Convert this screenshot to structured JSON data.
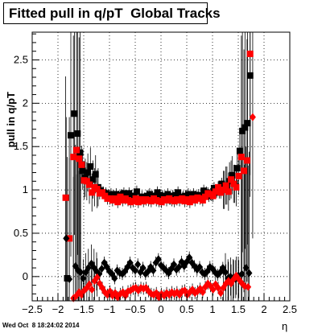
{
  "chart_data": {
    "type": "scatter",
    "title": "Fitted pull in q/pT  Global Tracks",
    "xlabel": "η",
    "ylabel": "pull in q/pT",
    "xlim": [
      -2.5,
      2.5
    ],
    "ylim": [
      -0.28,
      2.82
    ],
    "xticks": [
      "−2.5",
      "−2",
      "−1.5",
      "−1",
      "−0.5",
      "0",
      "0.5",
      "1",
      "1.5",
      "2",
      "2.5"
    ],
    "yticks": [
      "0",
      "0.5",
      "1",
      "1.5",
      "2",
      "2.5"
    ],
    "grid": true,
    "series": [
      {
        "marker": "square",
        "color": "#000000",
        "points": [
          [
            -1.82,
            -0.02
          ],
          [
            -1.75,
            1.63
          ],
          [
            -1.68,
            1.88
          ],
          [
            -1.62,
            1.65
          ],
          [
            -1.57,
            1.43
          ],
          [
            -1.52,
            1.22
          ],
          [
            -1.47,
            1.14
          ],
          [
            -1.42,
            1.2
          ],
          [
            -1.37,
            1.27
          ],
          [
            -1.32,
            1.12
          ],
          [
            -1.27,
            1.18
          ],
          [
            -1.22,
            1.03
          ],
          [
            -1.17,
            0.99
          ],
          [
            -1.12,
            0.97
          ],
          [
            -1.07,
            0.96
          ],
          [
            -1.02,
            0.94
          ],
          [
            -0.97,
            0.95
          ],
          [
            -0.92,
            0.93
          ],
          [
            -0.87,
            0.95
          ],
          [
            -0.82,
            0.92
          ],
          [
            -0.77,
            0.94
          ],
          [
            -0.72,
            0.96
          ],
          [
            -0.67,
            0.92
          ],
          [
            -0.62,
            0.96
          ],
          [
            -0.57,
            0.93
          ],
          [
            -0.52,
            0.93
          ],
          [
            -0.47,
            0.98
          ],
          [
            -0.42,
            0.9
          ],
          [
            -0.37,
            0.92
          ],
          [
            -0.32,
            0.9
          ],
          [
            -0.27,
            0.93
          ],
          [
            -0.22,
            0.95
          ],
          [
            -0.17,
            0.92
          ],
          [
            -0.12,
            0.93
          ],
          [
            -0.07,
            0.97
          ],
          [
            -0.02,
            0.94
          ],
          [
            0.03,
            0.93
          ],
          [
            0.08,
            0.92
          ],
          [
            0.13,
            0.95
          ],
          [
            0.18,
            0.9
          ],
          [
            0.23,
            0.93
          ],
          [
            0.28,
            0.94
          ],
          [
            0.33,
            0.97
          ],
          [
            0.38,
            0.91
          ],
          [
            0.43,
            0.92
          ],
          [
            0.48,
            0.93
          ],
          [
            0.53,
            0.95
          ],
          [
            0.58,
            0.91
          ],
          [
            0.63,
            0.95
          ],
          [
            0.68,
            0.92
          ],
          [
            0.73,
            0.94
          ],
          [
            0.78,
            0.93
          ],
          [
            0.83,
            0.99
          ],
          [
            0.88,
            0.97
          ],
          [
            0.93,
            0.93
          ],
          [
            0.98,
            0.94
          ],
          [
            1.03,
            1.02
          ],
          [
            1.08,
            0.98
          ],
          [
            1.13,
            0.97
          ],
          [
            1.18,
            1.07
          ],
          [
            1.23,
            1.0
          ],
          [
            1.28,
            1.05
          ],
          [
            1.33,
            1.1
          ],
          [
            1.38,
            1.17
          ],
          [
            1.43,
            1.07
          ],
          [
            1.48,
            1.25
          ],
          [
            1.53,
            1.45
          ],
          [
            1.58,
            1.68
          ],
          [
            1.63,
            1.72
          ],
          [
            1.68,
            1.77
          ],
          [
            1.73,
            2.32
          ]
        ]
      },
      {
        "marker": "square",
        "color": "#ff0000",
        "points": [
          [
            -1.85,
            0.91
          ],
          [
            -1.78,
            0.44
          ],
          [
            -1.7,
            1.38
          ],
          [
            -1.64,
            1.46
          ],
          [
            -1.59,
            1.36
          ],
          [
            -1.54,
            1.29
          ],
          [
            -1.49,
            1.11
          ],
          [
            -1.44,
            1.1
          ],
          [
            -1.39,
            1.06
          ],
          [
            -1.34,
            0.97
          ],
          [
            -1.29,
            1.03
          ],
          [
            -1.24,
            1.01
          ],
          [
            -1.19,
            0.96
          ],
          [
            -1.14,
            0.97
          ],
          [
            -1.09,
            0.93
          ],
          [
            -1.04,
            0.9
          ],
          [
            -0.99,
            0.9
          ],
          [
            -0.94,
            0.88
          ],
          [
            -0.89,
            0.9
          ],
          [
            -0.84,
            0.86
          ],
          [
            -0.79,
            0.92
          ],
          [
            -0.74,
            0.88
          ],
          [
            -0.69,
            0.9
          ],
          [
            -0.64,
            0.88
          ],
          [
            -0.59,
            0.86
          ],
          [
            -0.54,
            0.87
          ],
          [
            -0.49,
            0.9
          ],
          [
            -0.44,
            0.86
          ],
          [
            -0.39,
            0.89
          ],
          [
            -0.34,
            0.87
          ],
          [
            -0.29,
            0.89
          ],
          [
            -0.24,
            0.88
          ],
          [
            -0.19,
            0.87
          ],
          [
            -0.14,
            0.9
          ],
          [
            -0.09,
            0.88
          ],
          [
            -0.04,
            0.87
          ],
          [
            0.01,
            0.86
          ],
          [
            0.06,
            0.89
          ],
          [
            0.11,
            0.88
          ],
          [
            0.16,
            0.9
          ],
          [
            0.21,
            0.88
          ],
          [
            0.26,
            0.87
          ],
          [
            0.31,
            0.89
          ],
          [
            0.36,
            0.88
          ],
          [
            0.41,
            0.9
          ],
          [
            0.46,
            0.87
          ],
          [
            0.51,
            0.89
          ],
          [
            0.56,
            0.86
          ],
          [
            0.61,
            0.9
          ],
          [
            0.66,
            0.88
          ],
          [
            0.71,
            0.91
          ],
          [
            0.76,
            0.9
          ],
          [
            0.81,
            0.88
          ],
          [
            0.86,
            0.92
          ],
          [
            0.91,
            0.96
          ],
          [
            0.96,
            0.95
          ],
          [
            1.01,
            0.93
          ],
          [
            1.06,
            0.98
          ],
          [
            1.11,
            1.03
          ],
          [
            1.16,
            0.97
          ],
          [
            1.21,
            1.0
          ],
          [
            1.26,
            1.05
          ],
          [
            1.31,
            0.98
          ],
          [
            1.36,
            1.12
          ],
          [
            1.41,
            1.07
          ],
          [
            1.46,
            1.03
          ],
          [
            1.51,
            1.16
          ],
          [
            1.56,
            1.38
          ],
          [
            1.61,
            1.22
          ],
          [
            1.67,
            1.34
          ],
          [
            1.73,
            2.57
          ]
        ]
      },
      {
        "marker": "diamond",
        "color": "#000000",
        "points": [
          [
            -1.84,
            0.44
          ],
          [
            -1.78,
            -0.03
          ],
          [
            -1.66,
            0.12
          ],
          [
            -1.61,
            0.07
          ],
          [
            -1.56,
            0.05
          ],
          [
            -1.51,
            -0.02
          ],
          [
            -1.46,
            0.05
          ],
          [
            -1.41,
            0.1
          ],
          [
            -1.35,
            0.15
          ],
          [
            -1.3,
            0.1
          ],
          [
            -1.25,
            0.06
          ],
          [
            -1.2,
            0.03
          ],
          [
            -1.15,
            0.09
          ],
          [
            -1.1,
            0.16
          ],
          [
            -1.05,
            0.11
          ],
          [
            -1.0,
            0.06
          ],
          [
            -0.95,
            0.03
          ],
          [
            -0.9,
            -0.02
          ],
          [
            -0.85,
            0.07
          ],
          [
            -0.8,
            0.04
          ],
          [
            -0.75,
            0.03
          ],
          [
            -0.7,
            0.06
          ],
          [
            -0.65,
            0.11
          ],
          [
            -0.6,
            0.16
          ],
          [
            -0.55,
            0.1
          ],
          [
            -0.5,
            0.07
          ],
          [
            -0.45,
            0.14
          ],
          [
            -0.4,
            0.05
          ],
          [
            -0.35,
            0.1
          ],
          [
            -0.3,
            0.03
          ],
          [
            -0.25,
            0.06
          ],
          [
            -0.2,
            0.11
          ],
          [
            -0.15,
            0.07
          ],
          [
            -0.1,
            0.16
          ],
          [
            -0.05,
            0.2
          ],
          [
            0.0,
            0.13
          ],
          [
            0.05,
            0.1
          ],
          [
            0.1,
            0.07
          ],
          [
            0.15,
            0.04
          ],
          [
            0.2,
            0.09
          ],
          [
            0.25,
            0.14
          ],
          [
            0.3,
            0.08
          ],
          [
            0.35,
            0.11
          ],
          [
            0.4,
            0.17
          ],
          [
            0.45,
            0.12
          ],
          [
            0.5,
            0.17
          ],
          [
            0.55,
            0.22
          ],
          [
            0.6,
            0.16
          ],
          [
            0.65,
            0.12
          ],
          [
            0.7,
            0.08
          ],
          [
            0.75,
            0.11
          ],
          [
            0.8,
            0.05
          ],
          [
            0.85,
            0.03
          ],
          [
            0.9,
            0.06
          ],
          [
            0.95,
            0.11
          ],
          [
            1.0,
            0.09
          ],
          [
            1.05,
            0.05
          ],
          [
            1.1,
            0.02
          ],
          [
            1.15,
            0.05
          ],
          [
            1.2,
            0.1
          ],
          [
            1.25,
            0.05
          ],
          [
            1.3,
            -0.02
          ],
          [
            1.35,
            0.0
          ],
          [
            1.4,
            -0.02
          ],
          [
            1.45,
            -0.03
          ],
          [
            1.5,
            0.01
          ],
          [
            1.57,
            0.03
          ],
          [
            1.65,
            0.1
          ],
          [
            1.71,
            0.04
          ]
        ]
      },
      {
        "marker": "diamond",
        "color": "#ff0000",
        "points": [
          [
            -1.7,
            -0.25
          ],
          [
            -1.64,
            -0.22
          ],
          [
            -1.59,
            -0.18
          ],
          [
            -1.54,
            -0.21
          ],
          [
            -1.49,
            -0.16
          ],
          [
            -1.44,
            -0.13
          ],
          [
            -1.39,
            -0.09
          ],
          [
            -1.34,
            -0.15
          ],
          [
            -1.29,
            -0.05
          ],
          [
            -1.24,
            -0.01
          ],
          [
            -1.19,
            -0.08
          ],
          [
            -1.14,
            -0.13
          ],
          [
            -1.09,
            -0.18
          ],
          [
            -1.04,
            -0.21
          ],
          [
            -0.99,
            -0.17
          ],
          [
            -0.94,
            -0.22
          ],
          [
            -0.89,
            -0.19
          ],
          [
            -0.84,
            -0.24
          ],
          [
            -0.79,
            -0.2
          ],
          [
            -0.74,
            -0.18
          ],
          [
            -0.69,
            -0.22
          ],
          [
            -0.64,
            -0.17
          ],
          [
            -0.59,
            -0.16
          ],
          [
            -0.54,
            -0.14
          ],
          [
            -0.49,
            -0.13
          ],
          [
            -0.44,
            -0.16
          ],
          [
            -0.39,
            -0.13
          ],
          [
            -0.34,
            -0.14
          ],
          [
            -0.29,
            -0.13
          ],
          [
            -0.24,
            -0.17
          ],
          [
            -0.19,
            -0.2
          ],
          [
            -0.14,
            -0.21
          ],
          [
            -0.09,
            -0.19
          ],
          [
            -0.04,
            -0.24
          ],
          [
            0.01,
            -0.2
          ],
          [
            0.06,
            -0.22
          ],
          [
            0.11,
            -0.19
          ],
          [
            0.16,
            -0.21
          ],
          [
            0.21,
            -0.18
          ],
          [
            0.26,
            -0.2
          ],
          [
            0.31,
            -0.18
          ],
          [
            0.36,
            -0.21
          ],
          [
            0.41,
            -0.17
          ],
          [
            0.46,
            -0.16
          ],
          [
            0.51,
            -0.21
          ],
          [
            0.56,
            -0.18
          ],
          [
            0.61,
            -0.15
          ],
          [
            0.66,
            -0.19
          ],
          [
            0.71,
            -0.17
          ],
          [
            0.76,
            -0.14
          ],
          [
            0.81,
            -0.18
          ],
          [
            0.86,
            -0.12
          ],
          [
            0.91,
            -0.08
          ],
          [
            0.96,
            -0.11
          ],
          [
            1.01,
            -0.15
          ],
          [
            1.06,
            -0.09
          ],
          [
            1.11,
            -0.13
          ],
          [
            1.16,
            -0.19
          ],
          [
            1.21,
            -0.13
          ],
          [
            1.26,
            -0.08
          ],
          [
            1.31,
            -0.05
          ],
          [
            1.36,
            -0.08
          ],
          [
            1.41,
            -0.03
          ],
          [
            1.46,
            0.01
          ],
          [
            1.51,
            -0.03
          ],
          [
            1.56,
            -0.07
          ],
          [
            1.62,
            -0.11
          ],
          [
            1.69,
            -0.12
          ],
          [
            1.78,
            1.84
          ]
        ]
      }
    ]
  },
  "footer": {
    "timestamp": "Wed Oct  8 18:24:02 2014"
  }
}
